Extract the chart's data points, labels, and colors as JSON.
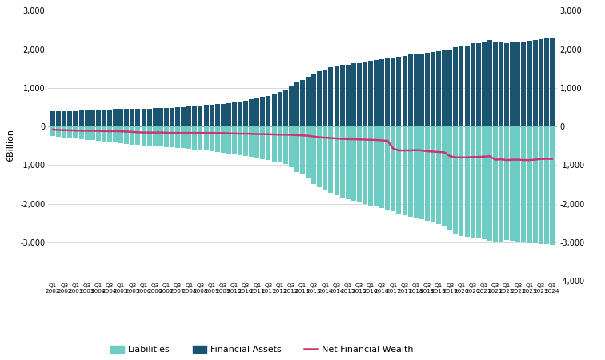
{
  "ylabel": "€Billion",
  "ylim": [
    -4000,
    3000
  ],
  "yticks_left": [
    -3000,
    -2000,
    -1000,
    0,
    1000,
    2000,
    3000
  ],
  "yticks_right": [
    -4000,
    -3000,
    -2000,
    -1000,
    0,
    1000,
    2000,
    3000
  ],
  "bar_color_assets": "#1b5471",
  "bar_color_liabilities": "#6dcdc5",
  "line_color_nfw": "#cc3572",
  "background_color": "#ffffff",
  "legend_labels": [
    "Liabilities",
    "Financial Assets",
    "Net Financial Wealth"
  ],
  "financial_assets": [
    390,
    400,
    395,
    405,
    400,
    410,
    415,
    420,
    430,
    435,
    445,
    450,
    455,
    460,
    455,
    450,
    455,
    460,
    470,
    475,
    480,
    490,
    500,
    510,
    520,
    530,
    540,
    555,
    565,
    580,
    590,
    610,
    630,
    650,
    670,
    700,
    730,
    760,
    800,
    850,
    900,
    950,
    1050,
    1150,
    1200,
    1280,
    1380,
    1430,
    1480,
    1530,
    1560,
    1590,
    1610,
    1640,
    1650,
    1670,
    1700,
    1720,
    1740,
    1760,
    1780,
    1800,
    1830,
    1860,
    1880,
    1900,
    1920,
    1940,
    1960,
    1970,
    2000,
    2050,
    2080,
    2100,
    2150,
    2170,
    2200,
    2250,
    2200,
    2180,
    2150,
    2180,
    2200,
    2200,
    2220,
    2240,
    2260,
    2280,
    2300
  ],
  "liabilities": [
    -250,
    -270,
    -280,
    -295,
    -310,
    -325,
    -340,
    -355,
    -370,
    -390,
    -405,
    -420,
    -435,
    -450,
    -465,
    -480,
    -490,
    -500,
    -510,
    -520,
    -530,
    -545,
    -555,
    -565,
    -580,
    -595,
    -610,
    -625,
    -640,
    -660,
    -675,
    -695,
    -715,
    -735,
    -755,
    -780,
    -810,
    -840,
    -870,
    -900,
    -940,
    -980,
    -1060,
    -1180,
    -1250,
    -1350,
    -1500,
    -1580,
    -1660,
    -1720,
    -1780,
    -1840,
    -1880,
    -1920,
    -1960,
    -2000,
    -2040,
    -2080,
    -2110,
    -2150,
    -2200,
    -2250,
    -2290,
    -2340,
    -2370,
    -2410,
    -2450,
    -2490,
    -2530,
    -2570,
    -2700,
    -2800,
    -2830,
    -2860,
    -2880,
    -2900,
    -2920,
    -2960,
    -3000,
    -2980,
    -2950,
    -2970,
    -2990,
    -3010,
    -3020,
    -3030,
    -3040,
    -3050,
    -3060
  ],
  "net_financial_wealth": [
    -80,
    -90,
    -95,
    -100,
    -105,
    -110,
    -110,
    -110,
    -115,
    -120,
    -120,
    -120,
    -125,
    -130,
    -140,
    -150,
    -155,
    -155,
    -155,
    -155,
    -160,
    -165,
    -165,
    -165,
    -165,
    -165,
    -165,
    -165,
    -165,
    -170,
    -170,
    -175,
    -180,
    -185,
    -185,
    -190,
    -195,
    -195,
    -200,
    -205,
    -210,
    -210,
    -215,
    -225,
    -230,
    -240,
    -260,
    -280,
    -290,
    -300,
    -310,
    -320,
    -325,
    -330,
    -335,
    -340,
    -345,
    -350,
    -360,
    -370,
    -575,
    -620,
    -620,
    -620,
    -610,
    -620,
    -640,
    -650,
    -660,
    -670,
    -770,
    -800,
    -800,
    -800,
    -790,
    -790,
    -780,
    -770,
    -860,
    -850,
    -870,
    -860,
    -860,
    -870,
    -870,
    -860,
    -840,
    -840,
    -840
  ]
}
